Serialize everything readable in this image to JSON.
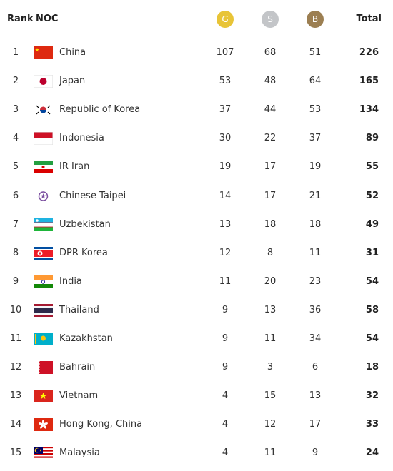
{
  "table": {
    "header": [
      "Rank",
      "NOC",
      "G",
      "S",
      "B",
      "Total"
    ],
    "rows": [
      [
        1,
        "China",
        107,
        68,
        51,
        226
      ],
      [
        2,
        "Japan",
        53,
        48,
        64,
        165
      ],
      [
        3,
        "Republic of Korea",
        37,
        44,
        53,
        134
      ],
      [
        4,
        "Indonesia",
        30,
        22,
        37,
        89
      ],
      [
        5,
        "IR Iran",
        19,
        17,
        19,
        55
      ],
      [
        6,
        "Chinese Taipei",
        14,
        17,
        21,
        52
      ],
      [
        7,
        "Uzbekistan",
        13,
        18,
        18,
        49
      ],
      [
        8,
        "DPR Korea",
        12,
        8,
        11,
        31
      ],
      [
        9,
        "India",
        11,
        20,
        23,
        54
      ],
      [
        10,
        "Thailand",
        9,
        13,
        36,
        58
      ],
      [
        11,
        "Kazakhstan",
        9,
        11,
        34,
        54
      ],
      [
        12,
        "Bahrain",
        9,
        3,
        6,
        18
      ],
      [
        13,
        "Vietnam",
        4,
        15,
        13,
        32
      ],
      [
        14,
        "Hong Kong, China",
        4,
        12,
        17,
        33
      ],
      [
        15,
        "Malaysia",
        4,
        11,
        9,
        24
      ]
    ]
  }
}
